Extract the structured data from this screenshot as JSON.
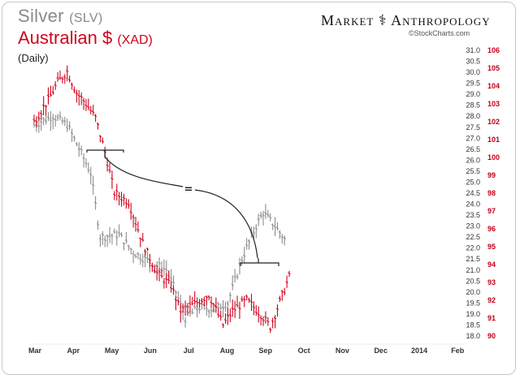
{
  "header": {
    "title1_main": "Silver",
    "title1_ticker": "(SLV)",
    "title2_main": "Australian $",
    "title2_ticker": "(XAD)",
    "period": "(Daily)",
    "brand": "Market ⚕ Anthropology",
    "credit": "©StockCharts.com"
  },
  "colors": {
    "silver": "#8c8c8c",
    "aud": "#d0021b",
    "annotation": "#222222"
  },
  "chart_data": {
    "type": "ohlc",
    "x_ticks": [
      "Mar",
      "Apr",
      "May",
      "Jun",
      "Jul",
      "Aug",
      "Sep",
      "Oct",
      "Nov",
      "Dec",
      "2014",
      "Feb"
    ],
    "left_axis": {
      "ticks": [
        "31.0",
        "30.5",
        "30.0",
        "29.5",
        "29.0",
        "28.5",
        "28.0",
        "27.5",
        "27.0",
        "26.5",
        "26.0",
        "25.5",
        "25.0",
        "24.5",
        "24.0",
        "23.5",
        "23.0",
        "22.5",
        "22.0",
        "21.5",
        "21.0",
        "20.5",
        "20.0",
        "19.5",
        "19.0",
        "18.5",
        "18.0"
      ],
      "range": [
        18.0,
        31.0
      ]
    },
    "right_axis": {
      "ticks": [
        "106",
        "105",
        "104",
        "103",
        "102",
        "101",
        "100",
        "99",
        "98",
        "97",
        "96",
        "95",
        "94",
        "93",
        "92",
        "91",
        "90"
      ],
      "range": [
        90,
        106
      ]
    },
    "annotation_label": "=",
    "series": [
      {
        "name": "Silver (SLV)",
        "axis": "left",
        "key_points": [
          [
            0,
            27.6
          ],
          [
            8,
            28.0
          ],
          [
            14,
            27.6
          ],
          [
            20,
            26.3
          ],
          [
            24,
            25.4
          ],
          [
            28,
            22.5
          ],
          [
            36,
            22.6
          ],
          [
            42,
            21.8
          ],
          [
            50,
            21.3
          ],
          [
            56,
            21.0
          ],
          [
            60,
            20.0
          ],
          [
            64,
            18.8
          ],
          [
            70,
            19.3
          ],
          [
            76,
            19.2
          ],
          [
            82,
            19.5
          ],
          [
            88,
            21.5
          ],
          [
            94,
            23.0
          ],
          [
            97,
            23.6
          ],
          [
            102,
            23.0
          ],
          [
            106,
            22.4
          ]
        ]
      },
      {
        "name": "Australian $ (XAD)",
        "axis": "right",
        "key_points": [
          [
            0,
            102.0
          ],
          [
            6,
            103.2
          ],
          [
            10,
            104.2
          ],
          [
            14,
            104.8
          ],
          [
            18,
            103.6
          ],
          [
            22,
            103.0
          ],
          [
            26,
            102.2
          ],
          [
            30,
            100.3
          ],
          [
            34,
            98.0
          ],
          [
            40,
            97.5
          ],
          [
            46,
            95.2
          ],
          [
            52,
            93.5
          ],
          [
            58,
            92.8
          ],
          [
            62,
            91.4
          ],
          [
            68,
            91.8
          ],
          [
            74,
            92.3
          ],
          [
            80,
            90.6
          ],
          [
            84,
            91.4
          ],
          [
            90,
            92.0
          ],
          [
            96,
            91.2
          ],
          [
            100,
            90.5
          ],
          [
            104,
            91.9
          ],
          [
            108,
            93.3
          ]
        ]
      }
    ]
  }
}
